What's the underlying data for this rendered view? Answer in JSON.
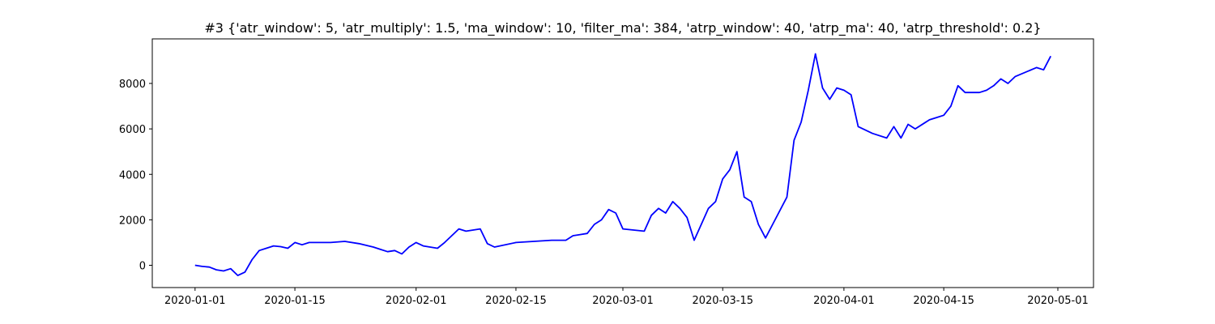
{
  "chart_data": {
    "type": "line",
    "title": "#3 {'atr_window': 5, 'atr_multiply': 1.5, 'ma_window': 10, 'filter_ma': 384, 'atrp_window': 40, 'atrp_ma': 40, 'atrp_threshold': 0.2}",
    "x": [
      "2020-01-01",
      "2020-01-02",
      "2020-01-03",
      "2020-01-04",
      "2020-01-05",
      "2020-01-06",
      "2020-01-07",
      "2020-01-08",
      "2020-01-09",
      "2020-01-10",
      "2020-01-11",
      "2020-01-12",
      "2020-01-13",
      "2020-01-14",
      "2020-01-15",
      "2020-01-16",
      "2020-01-17",
      "2020-01-20",
      "2020-01-22",
      "2020-01-24",
      "2020-01-26",
      "2020-01-27",
      "2020-01-28",
      "2020-01-29",
      "2020-01-30",
      "2020-01-31",
      "2020-02-01",
      "2020-02-02",
      "2020-02-04",
      "2020-02-05",
      "2020-02-07",
      "2020-02-08",
      "2020-02-10",
      "2020-02-11",
      "2020-02-12",
      "2020-02-15",
      "2020-02-20",
      "2020-02-22",
      "2020-02-23",
      "2020-02-24",
      "2020-02-25",
      "2020-02-26",
      "2020-02-27",
      "2020-02-28",
      "2020-02-29",
      "2020-03-01",
      "2020-03-04",
      "2020-03-05",
      "2020-03-06",
      "2020-03-07",
      "2020-03-08",
      "2020-03-09",
      "2020-03-10",
      "2020-03-11",
      "2020-03-12",
      "2020-03-13",
      "2020-03-14",
      "2020-03-15",
      "2020-03-16",
      "2020-03-17",
      "2020-03-18",
      "2020-03-19",
      "2020-03-20",
      "2020-03-21",
      "2020-03-22",
      "2020-03-24",
      "2020-03-25",
      "2020-03-26",
      "2020-03-27",
      "2020-03-28",
      "2020-03-29",
      "2020-03-30",
      "2020-03-31",
      "2020-04-01",
      "2020-04-02",
      "2020-04-03",
      "2020-04-05",
      "2020-04-07",
      "2020-04-08",
      "2020-04-09",
      "2020-04-10",
      "2020-04-11",
      "2020-04-13",
      "2020-04-14",
      "2020-04-15",
      "2020-04-16",
      "2020-04-17",
      "2020-04-18",
      "2020-04-20",
      "2020-04-21",
      "2020-04-22",
      "2020-04-23",
      "2020-04-24",
      "2020-04-25",
      "2020-04-28",
      "2020-04-29",
      "2020-04-30"
    ],
    "series": [
      {
        "color": "#0000ff",
        "values": [
          0,
          -50,
          -80,
          -200,
          -250,
          -150,
          -450,
          -300,
          250,
          650,
          750,
          850,
          820,
          750,
          1000,
          900,
          1000,
          1000,
          1050,
          950,
          800,
          700,
          600,
          650,
          500,
          800,
          1000,
          850,
          750,
          1000,
          1600,
          1500,
          1600,
          950,
          800,
          1000,
          1100,
          1100,
          1300,
          1350,
          1400,
          1800,
          2000,
          2450,
          2300,
          1600,
          1500,
          2200,
          2500,
          2300,
          2800,
          2500,
          2100,
          1100,
          1800,
          2500,
          2800,
          3800,
          4200,
          5000,
          3000,
          2800,
          1800,
          1200,
          1800,
          3000,
          5500,
          6300,
          7700,
          9300,
          7800,
          7300,
          7800,
          7700,
          7500,
          6100,
          5800,
          5600,
          6100,
          5600,
          6200,
          6000,
          6400,
          6500,
          6600,
          7000,
          7900,
          7600,
          7600,
          7700,
          7900,
          8200,
          8000,
          8300,
          8700,
          8600,
          9200
        ]
      }
    ],
    "xlim": [
      "2019-12-26",
      "2020-05-06"
    ],
    "xticks": [
      "2020-01-01",
      "2020-01-15",
      "2020-02-01",
      "2020-02-15",
      "2020-03-01",
      "2020-03-15",
      "2020-04-01",
      "2020-04-15",
      "2020-05-01"
    ],
    "ylim": [
      -980,
      9960
    ],
    "yticks": [
      0,
      2000,
      4000,
      6000,
      8000
    ]
  }
}
